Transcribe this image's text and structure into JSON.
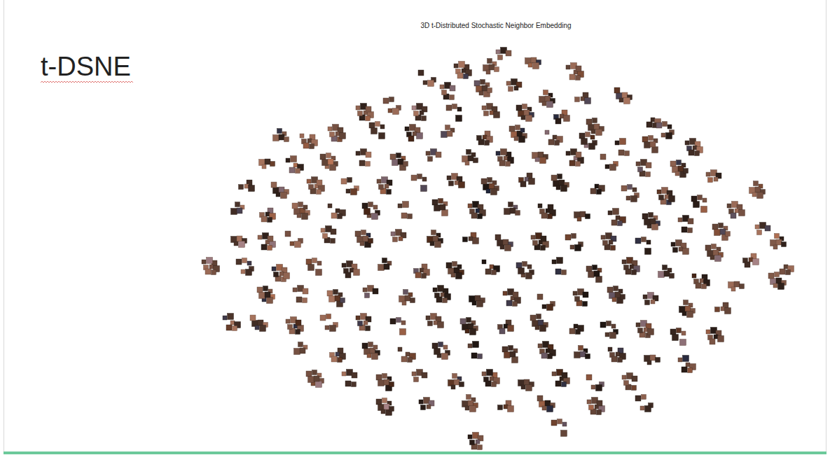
{
  "heading": "t-DSNE",
  "chart_data": {
    "type": "scatter",
    "title": "3D t-Distributed Stochastic Neighbor Embedding",
    "color": "#6b4a3c",
    "tick_labels": false,
    "xlim": [
      0,
      880
    ],
    "ylim": [
      0,
      580
    ],
    "x": [
      450,
      430,
      390,
      490,
      550,
      340,
      370,
      420,
      465,
      510,
      560,
      620,
      250,
      290,
      330,
      380,
      430,
      480,
      530,
      580,
      660,
      680,
      210,
      270,
      320,
      370,
      420,
      470,
      520,
      570,
      620,
      660,
      720,
      130,
      170,
      110,
      150,
      200,
      250,
      300,
      350,
      400,
      450,
      500,
      550,
      600,
      650,
      700,
      750,
      810,
      80,
      130,
      180,
      230,
      280,
      330,
      380,
      430,
      480,
      530,
      580,
      630,
      680,
      730,
      780,
      70,
      110,
      160,
      210,
      260,
      310,
      360,
      410,
      460,
      510,
      560,
      610,
      660,
      710,
      760,
      820,
      840,
      30,
      70,
      110,
      150,
      200,
      250,
      300,
      350,
      400,
      450,
      500,
      550,
      600,
      650,
      700,
      750,
      800,
      840,
      850,
      80,
      130,
      180,
      230,
      280,
      330,
      380,
      430,
      480,
      530,
      580,
      630,
      680,
      730,
      780,
      60,
      110,
      160,
      210,
      260,
      310,
      360,
      410,
      460,
      510,
      560,
      610,
      660,
      710,
      760,
      100,
      150,
      200,
      250,
      300,
      350,
      400,
      450,
      500,
      550,
      600,
      650,
      700,
      750,
      160,
      210,
      260,
      310,
      360,
      410,
      460,
      510,
      560,
      610,
      660,
      710,
      180,
      230,
      280,
      330,
      380,
      430,
      480,
      530,
      580,
      630,
      280,
      340,
      400,
      450,
      510,
      580,
      650,
      410,
      530
    ],
    "values": [
      560,
      545,
      540,
      555,
      538,
      530,
      510,
      515,
      515,
      500,
      500,
      505,
      480,
      490,
      480,
      480,
      480,
      480,
      475,
      460,
      470,
      455,
      450,
      455,
      450,
      450,
      445,
      450,
      445,
      440,
      430,
      435,
      430,
      445,
      440,
      410,
      405,
      410,
      415,
      410,
      415,
      415,
      415,
      420,
      415,
      410,
      400,
      400,
      385,
      370,
      375,
      370,
      375,
      375,
      375,
      380,
      380,
      375,
      385,
      380,
      375,
      365,
      360,
      350,
      340,
      340,
      335,
      340,
      340,
      340,
      340,
      345,
      340,
      340,
      340,
      335,
      330,
      325,
      320,
      310,
      310,
      295,
      260,
      300,
      295,
      300,
      305,
      300,
      300,
      300,
      300,
      295,
      295,
      295,
      295,
      290,
      285,
      280,
      270,
      240,
      260,
      260,
      250,
      260,
      255,
      260,
      255,
      255,
      260,
      255,
      260,
      250,
      260,
      250,
      240,
      235,
      180,
      220,
      220,
      215,
      220,
      215,
      220,
      215,
      215,
      210,
      215,
      220,
      210,
      200,
      200,
      180,
      175,
      180,
      180,
      175,
      180,
      175,
      175,
      180,
      175,
      170,
      170,
      160,
      160,
      140,
      135,
      140,
      135,
      140,
      140,
      135,
      140,
      135,
      135,
      130,
      120,
      100,
      100,
      95,
      100,
      95,
      100,
      95,
      100,
      95,
      95,
      60,
      60,
      65,
      60,
      65,
      60,
      65,
      10,
      30
    ]
  }
}
